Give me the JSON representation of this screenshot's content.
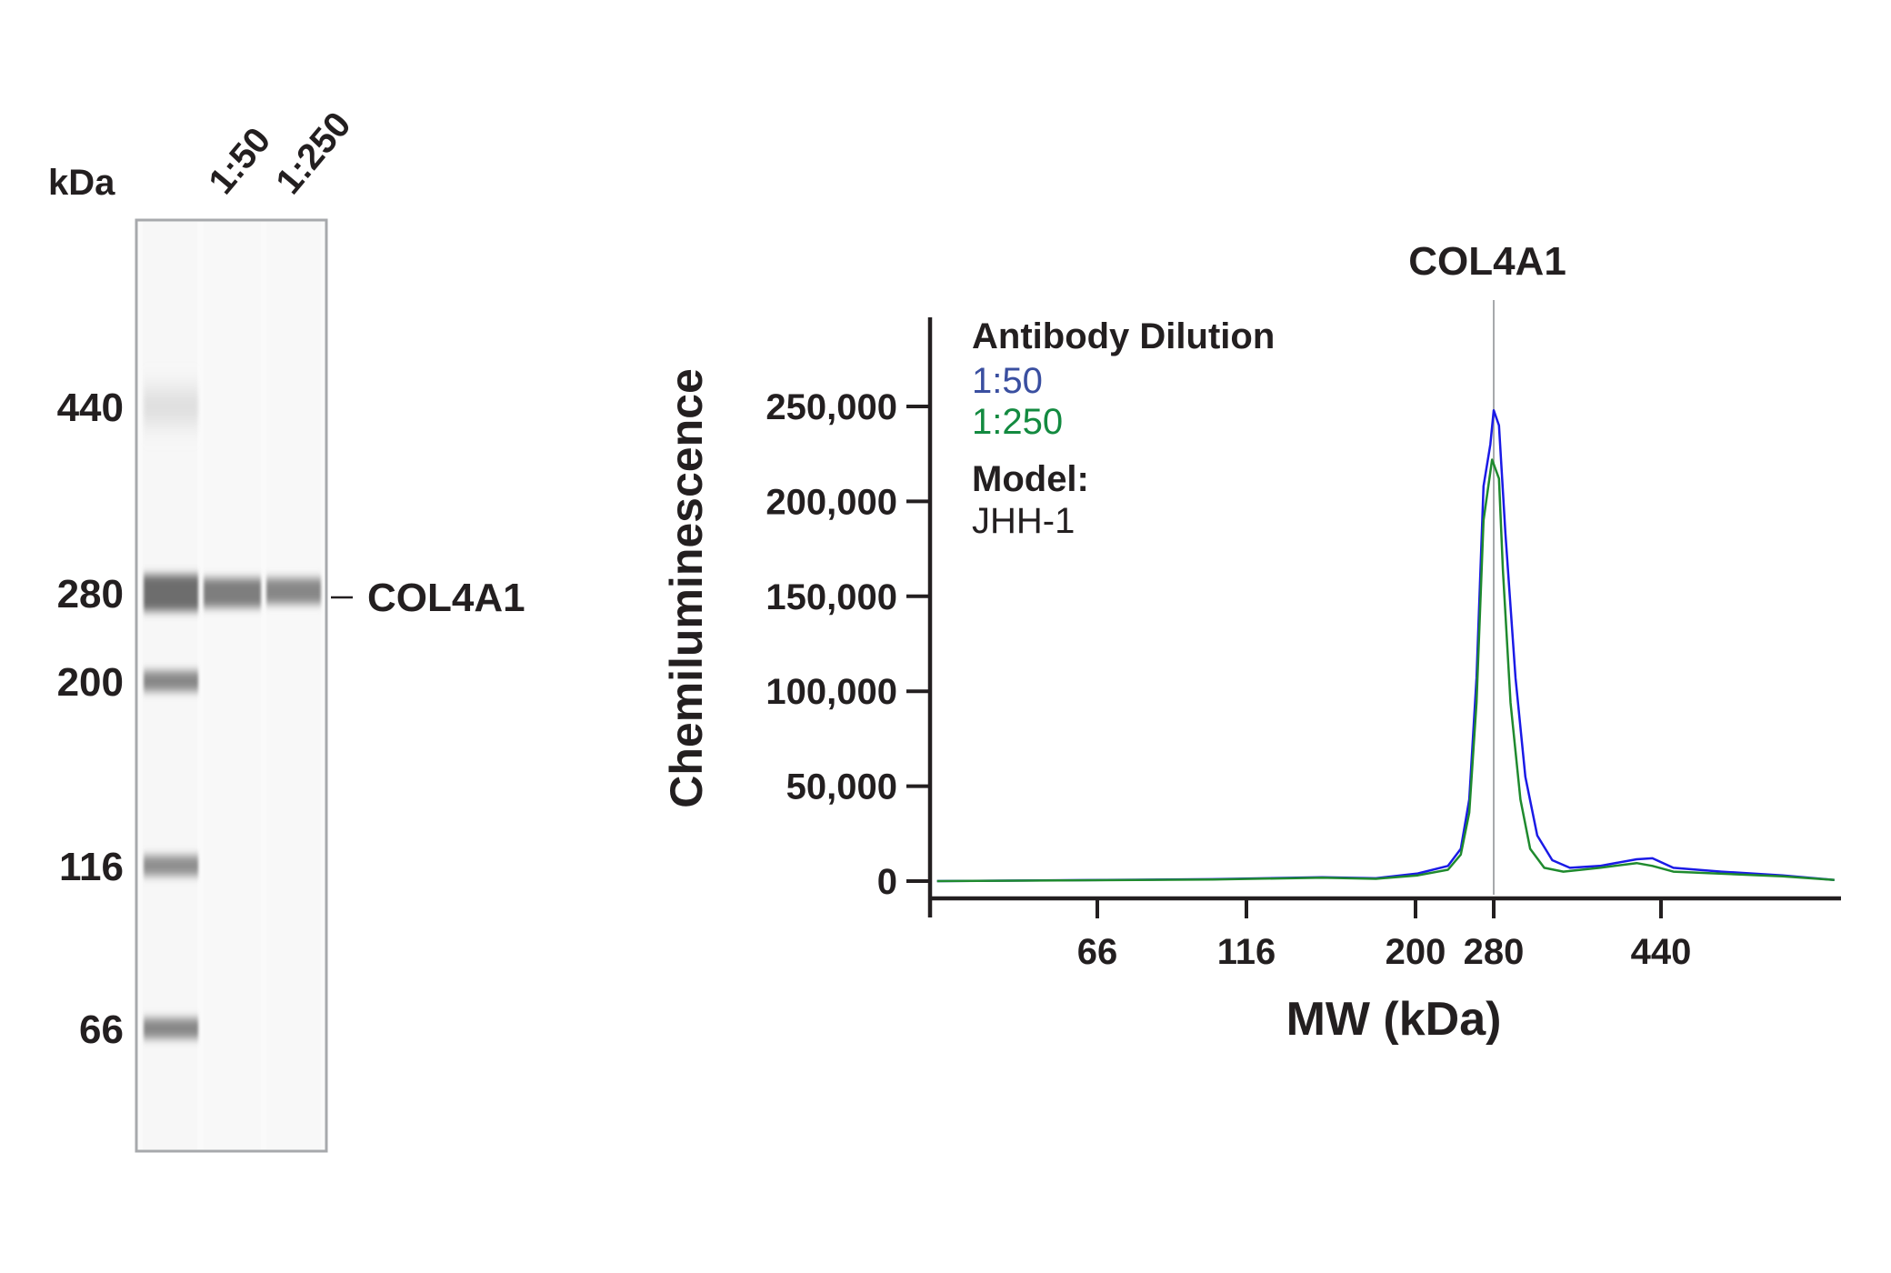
{
  "gel": {
    "unit_label": "kDa",
    "lanes": [
      "1:50",
      "1:250"
    ],
    "ladder_markers": [
      "440",
      "280",
      "200",
      "116",
      "66"
    ],
    "target_label": "COL4A1",
    "target_kda": 280,
    "ladder_band_intensity": {
      "440": 0.25,
      "280": 0.8,
      "200": 0.65,
      "116": 0.6,
      "66": 0.65
    },
    "sample_band_intensity": {
      "1:50": 0.7,
      "1:250": 0.65
    }
  },
  "chart_data": {
    "type": "line",
    "title": "COL4A1",
    "xlabel": "MW (kDa)",
    "ylabel": "Chemiluminescence",
    "x_scale": "log-like (capillary MW calibration)",
    "xlim": [
      35,
      720
    ],
    "ylim": [
      0,
      280000
    ],
    "x_ticks": [
      "66",
      "116",
      "200",
      "280",
      "440"
    ],
    "y_ticks": [
      "0",
      "50,000",
      "100,000",
      "150,000",
      "200,000",
      "250,000"
    ],
    "y_tick_values": [
      0,
      50000,
      100000,
      150000,
      200000,
      250000
    ],
    "reference_line_kda": 280,
    "grid": false,
    "legend": {
      "placement": "top-left",
      "title": "Antibody Dilution",
      "model_label": "Model:",
      "model_value": "JHH-1"
    },
    "series": [
      {
        "name": "1:50",
        "color": "#1a1ae6",
        "legend_color": "#3a4fa0",
        "x": [
          36,
          102,
          148,
          176,
          202,
          230,
          243,
          252,
          260,
          268,
          276,
          280,
          284,
          289,
          297,
          305,
          315,
          328,
          344,
          373,
          412,
          430,
          455,
          518,
          611,
          703
        ],
        "y": [
          0,
          1000,
          2000,
          1500,
          4000,
          8000,
          17000,
          43000,
          107000,
          208000,
          230000,
          248000,
          240000,
          183000,
          107000,
          55000,
          24000,
          11000,
          7000,
          8000,
          11500,
          12000,
          7000,
          5000,
          3000,
          600
        ]
      },
      {
        "name": "1:250",
        "color": "#1f8a2e",
        "legend_color": "#138a40",
        "x": [
          36,
          102,
          148,
          176,
          202,
          230,
          243,
          252,
          260,
          268,
          278,
          284,
          287,
          293,
          301,
          309,
          321,
          338,
          373,
          412,
          430,
          455,
          611,
          703
        ],
        "y": [
          0,
          800,
          1800,
          1200,
          3000,
          6000,
          14000,
          36000,
          94000,
          190000,
          222000,
          212000,
          164000,
          94000,
          43000,
          17000,
          7000,
          5000,
          7000,
          9500,
          8000,
          5000,
          2500,
          600
        ]
      }
    ]
  }
}
